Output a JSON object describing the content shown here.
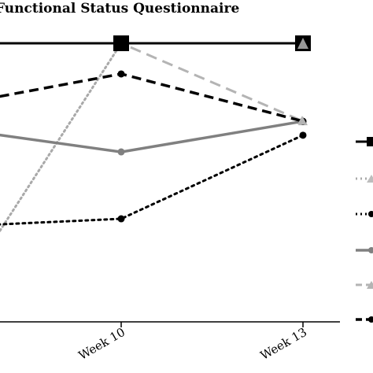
{
  "chart_data": {
    "type": "line",
    "title": "Functional Status Questionnaire",
    "xlabel": "",
    "ylabel": "",
    "categories": [
      "Week 10",
      "Week 13"
    ],
    "ylim": [
      0,
      100
    ],
    "grid": false,
    "legend": {
      "placement": "right"
    },
    "series": [
      {
        "style": "solid-black-square",
        "color": "#000000",
        "dash": "",
        "width": 3,
        "marker": "square",
        "values": [
          100,
          100
        ]
      },
      {
        "style": "dotted-gray",
        "color": "#a9a9a9",
        "dash": "2 4",
        "width": 3,
        "marker": "triangle-in-square",
        "values": [
          100,
          100
        ]
      },
      {
        "style": "dotted-black-circle",
        "color": "#000000",
        "dash": "3 5",
        "width": 3,
        "marker": "circle",
        "values": [
          37,
          67
        ]
      },
      {
        "style": "solid-gray-circle",
        "color": "#808080",
        "dash": "",
        "width": 3.5,
        "marker": "circle",
        "values": [
          61,
          72
        ]
      },
      {
        "style": "dashed-lightgray-triangle",
        "color": "#b4b4b4",
        "dash": "14 8",
        "width": 3,
        "marker": "triangle",
        "values": [
          100,
          72
        ]
      },
      {
        "style": "dashed-black-circle",
        "color": "#000000",
        "dash": "12 7",
        "width": 3.5,
        "marker": "circle",
        "values": [
          89,
          72
        ]
      }
    ]
  }
}
